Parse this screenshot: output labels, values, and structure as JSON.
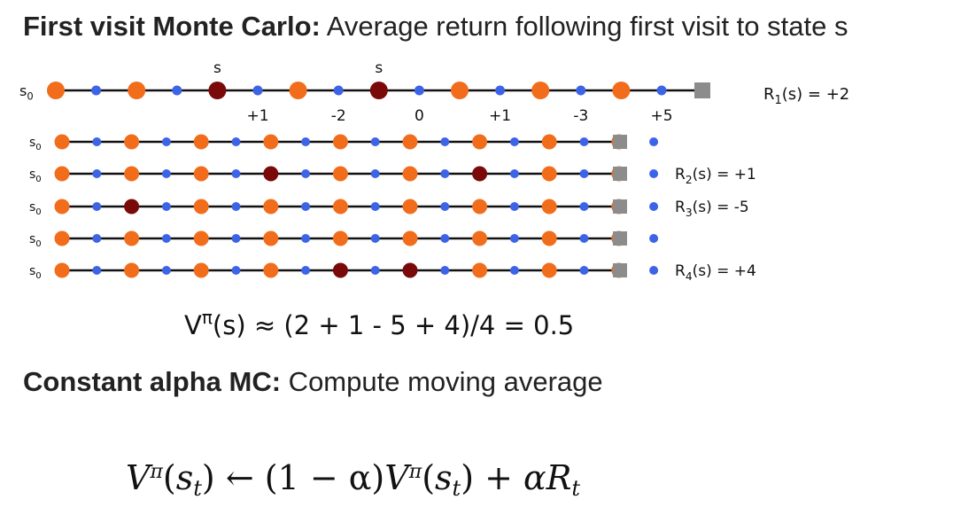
{
  "title1": {
    "bold": "First visit Monte Carlo:",
    "rest": " Average return following first visit to state s"
  },
  "colors": {
    "orange": "#f26d1b",
    "blue": "#3d63e6",
    "red": "#7a0a0a",
    "line": "#111111",
    "terminal": "#8c8c8c"
  },
  "episode_main": {
    "start_label": "s",
    "start_sub": "0",
    "nodes": [
      "o",
      "b",
      "o",
      "b",
      "r",
      "b",
      "o",
      "b",
      "r",
      "b",
      "o",
      "b",
      "o",
      "b",
      "o",
      "b"
    ],
    "state_marker": "s",
    "rewards": [
      "+1",
      "-2",
      "0",
      "+1",
      "-3",
      "+5"
    ],
    "return": {
      "R": "R",
      "sub": "1",
      "rest": "(s) = +2"
    }
  },
  "episodes": [
    {
      "start_label": "s",
      "start_sub": "0",
      "nodes": [
        "o",
        "b",
        "o",
        "b",
        "o",
        "b",
        "o",
        "b",
        "o",
        "b",
        "o",
        "b",
        "o",
        "b",
        "o",
        "b",
        "o",
        "b"
      ],
      "return": null
    },
    {
      "start_label": "s",
      "start_sub": "0",
      "nodes": [
        "o",
        "b",
        "o",
        "b",
        "o",
        "b",
        "r",
        "b",
        "o",
        "b",
        "o",
        "b",
        "r",
        "b",
        "o",
        "b",
        "o",
        "b"
      ],
      "return": {
        "R": "R",
        "sub": "2",
        "rest": "(s) = +1"
      }
    },
    {
      "start_label": "s",
      "start_sub": "0",
      "nodes": [
        "o",
        "b",
        "r",
        "b",
        "o",
        "b",
        "o",
        "b",
        "o",
        "b",
        "o",
        "b",
        "o",
        "b",
        "o",
        "b",
        "o",
        "b"
      ],
      "return": {
        "R": "R",
        "sub": "3",
        "rest": "(s) = -5"
      }
    },
    {
      "start_label": "s",
      "start_sub": "0",
      "nodes": [
        "o",
        "b",
        "o",
        "b",
        "o",
        "b",
        "o",
        "b",
        "o",
        "b",
        "o",
        "b",
        "o",
        "b",
        "o",
        "b",
        "o",
        "b"
      ],
      "return": null
    },
    {
      "start_label": "s",
      "start_sub": "0",
      "nodes": [
        "o",
        "b",
        "o",
        "b",
        "o",
        "b",
        "o",
        "b",
        "r",
        "b",
        "r",
        "b",
        "o",
        "b",
        "o",
        "b",
        "o",
        "b"
      ],
      "return": {
        "R": "R",
        "sub": "4",
        "rest": "(s) = +4"
      }
    }
  ],
  "value_formula": {
    "V": "V",
    "pi": "π",
    "rest": "(s) ≈ (2 + 1 - 5 + 4)/4 = 0.5"
  },
  "title2": {
    "bold": "Constant alpha MC:",
    "rest": " Compute moving average"
  },
  "update_rule": {
    "V": "V",
    "pi": "π",
    "s": "s",
    "t": "t",
    "arrow": "←",
    "one_minus_alpha": "(1 − α)",
    "plus": "+",
    "alpha": "α",
    "R": "R"
  }
}
